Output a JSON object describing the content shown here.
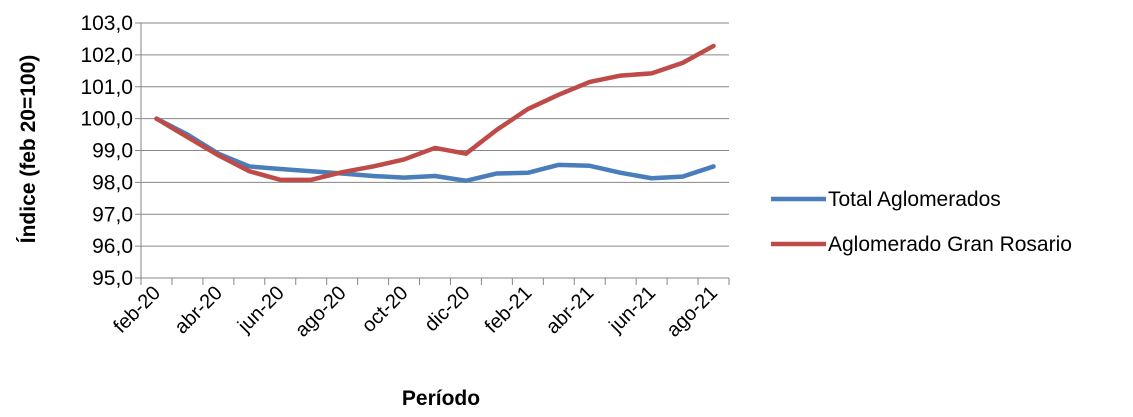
{
  "chart_data": {
    "type": "line",
    "title": "",
    "xlabel": "Período",
    "ylabel": "Índice (feb 20=100)",
    "ylim": [
      95.0,
      103.0
    ],
    "y_ticks": [
      "95,0",
      "96,0",
      "97,0",
      "98,0",
      "99,0",
      "100,0",
      "101,0",
      "102,0",
      "103,0"
    ],
    "y_tick_values": [
      95,
      96,
      97,
      98,
      99,
      100,
      101,
      102,
      103
    ],
    "x": [
      "feb-20",
      "mar-20",
      "abr-20",
      "may-20",
      "jun-20",
      "jul-20",
      "ago-20",
      "sep-20",
      "oct-20",
      "nov-20",
      "dic-20",
      "ene-21",
      "feb-21",
      "mar-21",
      "abr-21",
      "may-21",
      "jun-21",
      "jul-21",
      "ago-21"
    ],
    "x_tick_labels": [
      "feb-20",
      "",
      "abr-20",
      "",
      "jun-20",
      "",
      "ago-20",
      "",
      "oct-20",
      "",
      "dic-20",
      "",
      "feb-21",
      "",
      "abr-21",
      "",
      "jun-21",
      "",
      "ago-21"
    ],
    "grid": true,
    "legend_position": "right",
    "series": [
      {
        "name": "Total Aglomerados",
        "color": "#4a7ebb",
        "values": [
          100.0,
          99.5,
          98.9,
          98.5,
          98.42,
          98.35,
          98.28,
          98.2,
          98.15,
          98.2,
          98.05,
          98.28,
          98.3,
          98.55,
          98.52,
          98.3,
          98.13,
          98.18,
          98.5
        ]
      },
      {
        "name": "Aglomerado Gran Rosario",
        "color": "#be4b48",
        "values": [
          100.0,
          99.42,
          98.85,
          98.35,
          98.08,
          98.08,
          98.32,
          98.5,
          98.72,
          99.08,
          98.9,
          99.65,
          100.3,
          100.75,
          101.15,
          101.35,
          101.42,
          101.75,
          102.28
        ]
      }
    ]
  }
}
